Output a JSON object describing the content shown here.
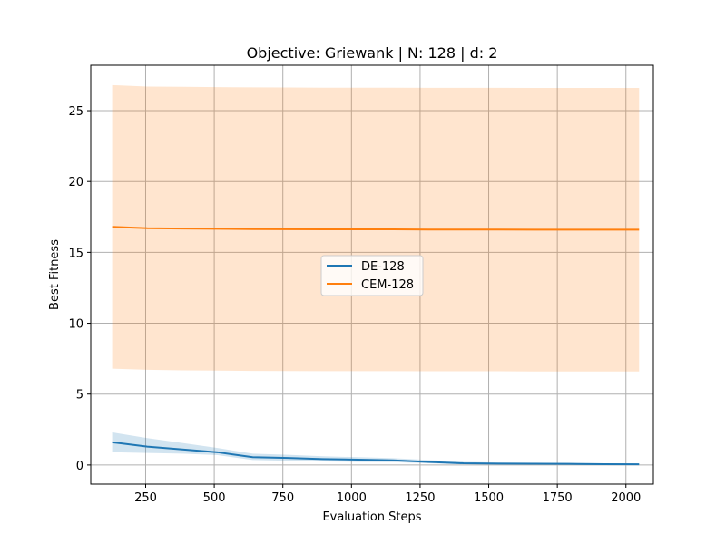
{
  "chart_data": {
    "type": "line",
    "title": "Objective: Griewank | N: 128 | d: 2",
    "xlabel": "Evaluation Steps",
    "ylabel": "Best Fitness",
    "xlim": [
      50,
      2100
    ],
    "ylim": [
      -1.35,
      28.2
    ],
    "xticks": [
      250,
      500,
      750,
      1000,
      1250,
      1500,
      1750,
      2000
    ],
    "yticks": [
      0,
      5,
      10,
      15,
      20,
      25
    ],
    "grid": true,
    "legend_position": "center",
    "series": [
      {
        "name": "DE-128",
        "color": "#1f77b4",
        "x": [
          128,
          256,
          384,
          512,
          640,
          768,
          896,
          1024,
          1152,
          1280,
          1408,
          1536,
          1664,
          1792,
          1920,
          2048
        ],
        "y": [
          1.6,
          1.3,
          1.1,
          0.9,
          0.55,
          0.5,
          0.42,
          0.38,
          0.33,
          0.22,
          0.12,
          0.1,
          0.09,
          0.08,
          0.06,
          0.05
        ],
        "lower": [
          0.9,
          0.85,
          0.8,
          0.7,
          0.35,
          0.3,
          0.25,
          0.22,
          0.2,
          0.12,
          0.05,
          0.04,
          0.03,
          0.02,
          0.01,
          0.0
        ],
        "upper": [
          2.3,
          1.9,
          1.55,
          1.2,
          0.8,
          0.72,
          0.62,
          0.55,
          0.48,
          0.35,
          0.22,
          0.18,
          0.16,
          0.14,
          0.12,
          0.1
        ]
      },
      {
        "name": "CEM-128",
        "color": "#ff7f0e",
        "x": [
          128,
          256,
          384,
          512,
          640,
          768,
          896,
          1024,
          1152,
          1280,
          1408,
          1536,
          1664,
          1792,
          1920,
          2048
        ],
        "y": [
          16.8,
          16.7,
          16.68,
          16.66,
          16.64,
          16.63,
          16.62,
          16.62,
          16.62,
          16.61,
          16.61,
          16.61,
          16.6,
          16.6,
          16.6,
          16.6
        ],
        "lower": [
          6.8,
          6.72,
          6.68,
          6.66,
          6.64,
          6.63,
          6.62,
          6.62,
          6.62,
          6.61,
          6.61,
          6.61,
          6.6,
          6.6,
          6.6,
          6.6
        ],
        "upper": [
          26.8,
          26.7,
          26.68,
          26.66,
          26.64,
          26.63,
          26.62,
          26.62,
          26.62,
          26.61,
          26.61,
          26.61,
          26.6,
          26.6,
          26.6,
          26.6
        ]
      }
    ]
  }
}
